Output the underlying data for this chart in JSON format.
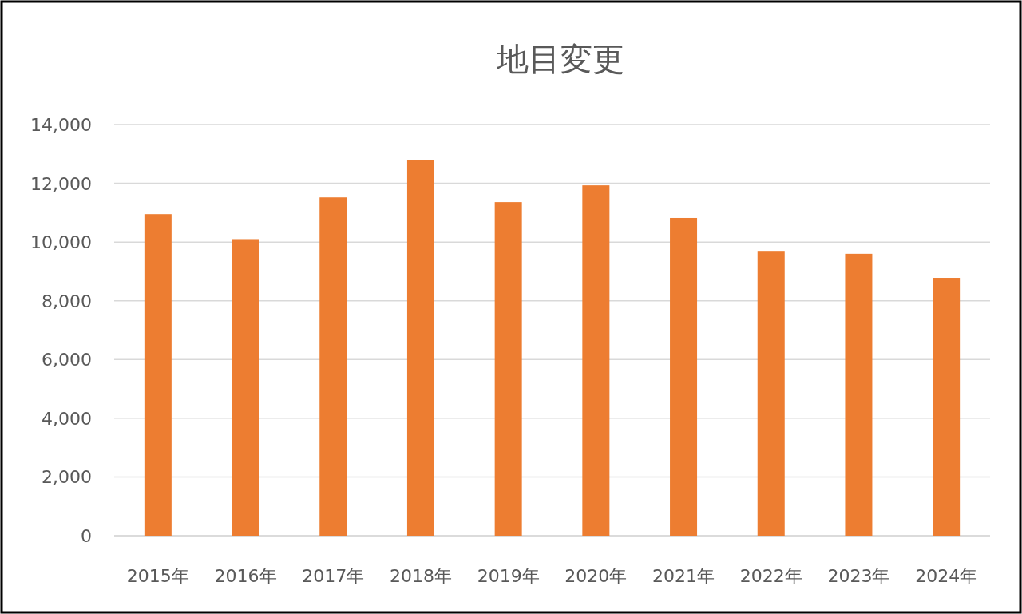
{
  "chart_data": {
    "type": "bar",
    "title": "地目変更",
    "categories": [
      "2015年",
      "2016年",
      "2017年",
      "2018年",
      "2019年",
      "2020年",
      "2021年",
      "2022年",
      "2023年",
      "2024年"
    ],
    "values": [
      10950,
      10100,
      11520,
      12800,
      11360,
      11930,
      10820,
      9700,
      9600,
      8780
    ],
    "color": "#ed7d31",
    "ylim": [
      0,
      14000
    ],
    "yticks": [
      {
        "value": 0,
        "label": "0"
      },
      {
        "value": 2000,
        "label": "2,000"
      },
      {
        "value": 4000,
        "label": "4,000"
      },
      {
        "value": 6000,
        "label": "6,000"
      },
      {
        "value": 8000,
        "label": "8,000"
      },
      {
        "value": 10000,
        "label": "10,000"
      },
      {
        "value": 12000,
        "label": "12,000"
      },
      {
        "value": 14000,
        "label": "14,000"
      }
    ],
    "grid": "y"
  }
}
